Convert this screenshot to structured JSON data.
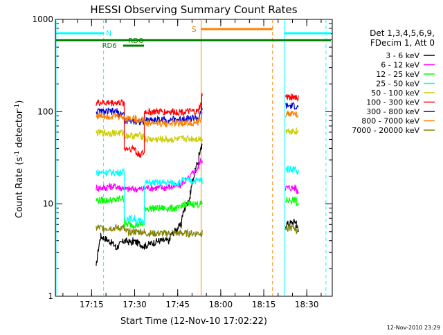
{
  "chart_data": {
    "type": "line",
    "title": "HESSI Observing Summary Count Rates",
    "xlabel": "Start Time (12-Nov-10 17:02:22)",
    "ylabel_main": "Count Rate (s",
    "ylabel_sup1": "-1",
    "ylabel_mid": " detector",
    "ylabel_sup2": "-1",
    "ylabel_end": ")",
    "yscale": "log",
    "ylim": [
      1,
      1000
    ],
    "xlim_minutes": [
      0,
      96.5
    ],
    "x_ticks": [
      {
        "minute": 12.63,
        "label": "17:15"
      },
      {
        "minute": 27.63,
        "label": "17:30"
      },
      {
        "minute": 42.63,
        "label": "17:45"
      },
      {
        "minute": 57.63,
        "label": "18:00"
      },
      {
        "minute": 72.63,
        "label": "18:15"
      },
      {
        "minute": 87.63,
        "label": "18:30"
      }
    ],
    "y_ticks": [
      {
        "value": 1,
        "label": "1"
      },
      {
        "value": 10,
        "label": "10"
      },
      {
        "value": 100,
        "label": "100"
      },
      {
        "value": 1000,
        "label": "1000"
      }
    ],
    "legend_header": [
      "Det 1,3,4,5,6,9,",
      "FDecim 1, Att 0"
    ],
    "series": [
      {
        "name": "3 - 6 keV",
        "color": "#000000",
        "segments": [
          [
            14.2,
            2,
            4.5
          ],
          [
            15.8,
            4.5,
            4
          ],
          [
            18.7,
            4,
            3.5
          ],
          [
            21,
            3.3,
            4
          ],
          [
            24,
            4,
            3.8
          ],
          [
            27,
            4,
            3.5
          ],
          [
            31,
            3.5,
            4
          ],
          [
            36,
            4,
            4
          ],
          [
            40,
            4.5,
            6
          ],
          [
            44,
            7,
            12
          ],
          [
            47,
            13,
            30
          ],
          [
            50,
            35,
            40
          ],
          [
            51,
            40,
            45
          ]
        ],
        "segments2": [
          [
            80.2,
            6,
            6.5
          ],
          [
            84,
            6,
            5
          ]
        ]
      },
      {
        "name": "6 - 12 keV",
        "color": "#ff00ff",
        "segments": [
          [
            14.2,
            15,
            15
          ],
          [
            18,
            15.5,
            15.5
          ],
          [
            22,
            15,
            15
          ],
          [
            24,
            14.5,
            14.5
          ],
          [
            28,
            14.5,
            14.5
          ],
          [
            31,
            15,
            15
          ],
          [
            38,
            15,
            16
          ],
          [
            44,
            17,
            19
          ],
          [
            47,
            20,
            25
          ],
          [
            50,
            28,
            30
          ],
          [
            51,
            30,
            30
          ]
        ],
        "segments2": [
          [
            80.2,
            15,
            15
          ],
          [
            84,
            14,
            14
          ]
        ]
      },
      {
        "name": "12 - 25 keV",
        "color": "#00ff00",
        "segments": [
          [
            14.2,
            11,
            11
          ],
          [
            18,
            11,
            11
          ],
          [
            22,
            11.5,
            11.5
          ],
          [
            24,
            6,
            6
          ],
          [
            28,
            6,
            6
          ],
          [
            31,
            9,
            9
          ],
          [
            38,
            9,
            9
          ],
          [
            44,
            10,
            10
          ],
          [
            51,
            10,
            10
          ]
        ],
        "segments2": [
          [
            80.2,
            11,
            11
          ],
          [
            84,
            10,
            10
          ]
        ]
      },
      {
        "name": "25 - 50 keV",
        "color": "#00ffff",
        "segments": [
          [
            14.2,
            22,
            22
          ],
          [
            18,
            22,
            22
          ],
          [
            22,
            22,
            22
          ],
          [
            24,
            7,
            7
          ],
          [
            28,
            6.5,
            6.5
          ],
          [
            31,
            17,
            17
          ],
          [
            38,
            17,
            17
          ],
          [
            44,
            18,
            18
          ],
          [
            51,
            18,
            18
          ]
        ],
        "segments2": [
          [
            80.2,
            24,
            24
          ],
          [
            84,
            22,
            22
          ]
        ]
      },
      {
        "name": "50 - 100 keV",
        "color": "#cccc00",
        "segments": [
          [
            14.2,
            59,
            59
          ],
          [
            18,
            59,
            59
          ],
          [
            22,
            59,
            59
          ],
          [
            24,
            55,
            55
          ],
          [
            28,
            55,
            55
          ],
          [
            31,
            50,
            50
          ],
          [
            38,
            50,
            50
          ],
          [
            44,
            51,
            51
          ],
          [
            51,
            51,
            51
          ]
        ],
        "segments2": [
          [
            80.2,
            62,
            62
          ],
          [
            84,
            60,
            60
          ]
        ]
      },
      {
        "name": "100 - 300 keV",
        "color": "#ff0000",
        "segments": [
          [
            14.2,
            125,
            125
          ],
          [
            18,
            125,
            125
          ],
          [
            22,
            125,
            125
          ],
          [
            24,
            40,
            40
          ],
          [
            28,
            35,
            35
          ],
          [
            31,
            100,
            100
          ],
          [
            38,
            100,
            100
          ],
          [
            44,
            100,
            100
          ],
          [
            50,
            110,
            120
          ],
          [
            51,
            150,
            150
          ]
        ],
        "segments2": [
          [
            80.2,
            145,
            145
          ],
          [
            84,
            140,
            140
          ]
        ]
      },
      {
        "name": "300 - 800 keV",
        "color": "#0000cc",
        "segments": [
          [
            14.2,
            100,
            100
          ],
          [
            18,
            100,
            100
          ],
          [
            22,
            95,
            95
          ],
          [
            24,
            80,
            80
          ],
          [
            28,
            78,
            78
          ],
          [
            31,
            82,
            82
          ],
          [
            38,
            82,
            82
          ],
          [
            44,
            85,
            85
          ],
          [
            50,
            90,
            95
          ],
          [
            51,
            110,
            110
          ]
        ],
        "segments2": [
          [
            80.2,
            115,
            115
          ],
          [
            84,
            110,
            110
          ]
        ]
      },
      {
        "name": "800 - 7000 keV",
        "color": "#ff8000",
        "segments": [
          [
            14.2,
            90,
            90
          ],
          [
            18,
            90,
            90
          ],
          [
            22,
            88,
            88
          ],
          [
            24,
            85,
            85
          ],
          [
            28,
            82,
            82
          ],
          [
            31,
            75,
            75
          ],
          [
            38,
            75,
            75
          ],
          [
            44,
            76,
            76
          ],
          [
            50,
            80,
            85
          ],
          [
            51,
            95,
            95
          ]
        ],
        "segments2": [
          [
            80.2,
            95,
            95
          ],
          [
            84,
            90,
            90
          ]
        ]
      },
      {
        "name": "7000 - 20000 keV",
        "color": "#808000",
        "segments": [
          [
            14.2,
            5.5,
            5.5
          ],
          [
            18,
            5.5,
            5.5
          ],
          [
            22,
            5.5,
            5.5
          ],
          [
            24,
            5,
            5
          ],
          [
            28,
            5,
            5
          ],
          [
            31,
            4.8,
            4.8
          ],
          [
            38,
            4.8,
            4.8
          ],
          [
            44,
            4.8,
            4.8
          ],
          [
            51,
            4.8,
            4.8
          ]
        ],
        "segments2": [
          [
            80.2,
            5.5,
            5.5
          ],
          [
            84,
            5,
            5
          ]
        ]
      }
    ],
    "annotations": {
      "N_label": "N",
      "S_label": "S",
      "RDO_label": "RDO",
      "RD6_label": "RD6"
    },
    "colors": {
      "frame": "#000000",
      "night_bar": "#00ffff",
      "saa_bar": "#ff8000",
      "dropout_bar": "#008000"
    },
    "timestamp": "12-Nov-2010 23:29"
  }
}
